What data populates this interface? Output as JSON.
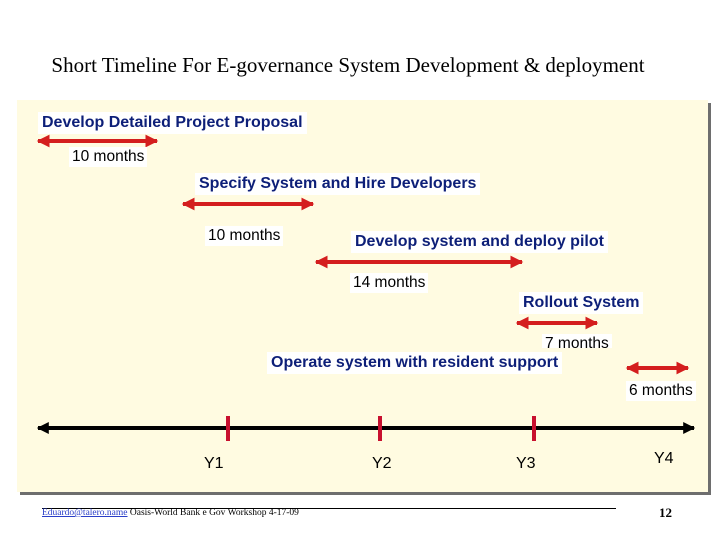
{
  "title": "Short Timeline For E-governance System Development & deployment",
  "phases": [
    {
      "label": "Develop Detailed Project Proposal",
      "duration": "10 months"
    },
    {
      "label": "Specify System and Hire Developers",
      "duration": "10 months"
    },
    {
      "label": "Develop system and deploy pilot",
      "duration": "14 months"
    },
    {
      "label": "Rollout System",
      "duration": "7 months"
    },
    {
      "label": "Operate system with resident support",
      "duration": "6 months"
    }
  ],
  "years": [
    "Y1",
    "Y2",
    "Y3",
    "Y4"
  ],
  "footer": {
    "link": "Eduardo@talero.name",
    "text": " Oasis-World Bank e Gov Workshop 4-17-09",
    "page": "12"
  },
  "colors": {
    "arrow": "#d41e1e",
    "timeline": "#000000",
    "label_text": "#0d1f78",
    "panel": "#fffbe1"
  }
}
